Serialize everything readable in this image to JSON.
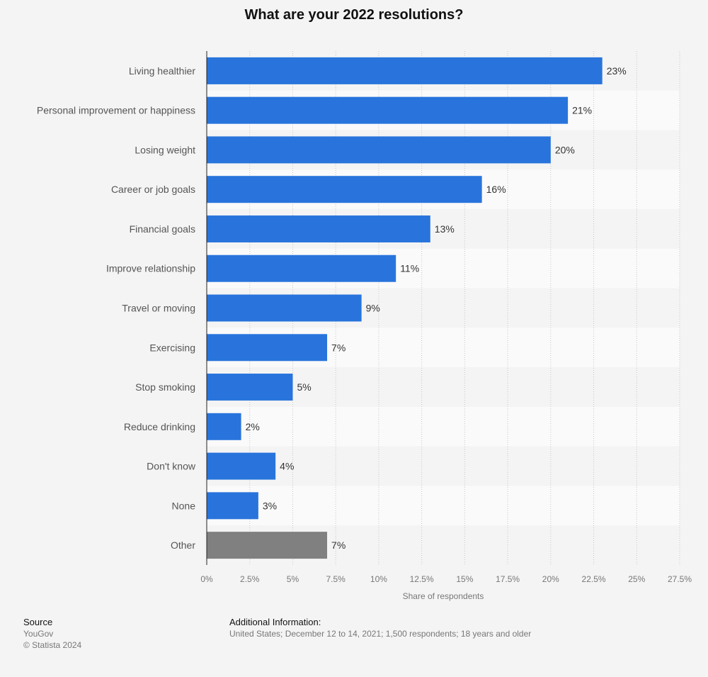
{
  "chart_data": {
    "type": "bar",
    "orientation": "horizontal",
    "title": "What are your 2022 resolutions?",
    "xlabel": "Share of respondents",
    "ylabel": "",
    "xlim": [
      0,
      27.5
    ],
    "x_ticks": [
      "0%",
      "2.5%",
      "5%",
      "7.5%",
      "10%",
      "12.5%",
      "15%",
      "17.5%",
      "20%",
      "22.5%",
      "25%",
      "27.5%"
    ],
    "grid": true,
    "categories": [
      "Living healthier",
      "Personal improvement or happiness",
      "Losing weight",
      "Career or job goals",
      "Financial goals",
      "Improve relationship",
      "Travel or moving",
      "Exercising",
      "Stop smoking",
      "Reduce drinking",
      "Don't know",
      "None",
      "Other"
    ],
    "values": [
      23,
      21,
      20,
      16,
      13,
      11,
      9,
      7,
      5,
      2,
      4,
      3,
      7
    ],
    "value_labels": [
      "23%",
      "21%",
      "20%",
      "16%",
      "13%",
      "11%",
      "9%",
      "7%",
      "5%",
      "2%",
      "4%",
      "3%",
      "7%"
    ],
    "colors": {
      "primary": "#2874dc",
      "other": "#808080"
    },
    "highlight_gray": [
      "Other"
    ]
  },
  "footer": {
    "source_heading": "Source",
    "source_name": "YouGov",
    "copyright": "© Statista 2024",
    "additional_heading": "Additional Information:",
    "additional_text": "United States; December 12 to 14, 2021; 1,500 respondents; 18 years and older"
  }
}
